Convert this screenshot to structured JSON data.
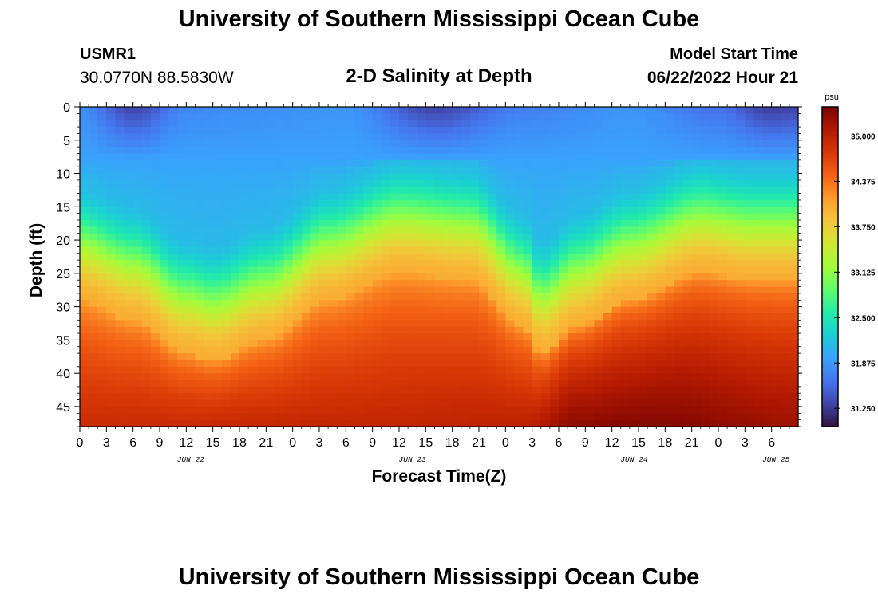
{
  "header": {
    "title": "University of Southern Mississippi Ocean Cube",
    "station_id": "USMR1",
    "coordinates": "30.0770N  88.5830W",
    "plot_title": "2-D Salinity at Depth",
    "model_start_label": "Model Start Time",
    "model_start_value": "06/22/2022 Hour 21"
  },
  "footer": {
    "title": "University of Southern Mississippi Ocean Cube"
  },
  "colors": {
    "colormap": [
      "#30123b",
      "#4145ab",
      "#4675ed",
      "#39a2fc",
      "#1bcfd4",
      "#24eca6",
      "#61fc6c",
      "#a4fc3b",
      "#d1e834",
      "#f3c63a",
      "#fe9b2d",
      "#f36315",
      "#d93806",
      "#b11901",
      "#7a0402"
    ]
  },
  "chart_data": {
    "type": "heatmap",
    "title": "2-D Salinity at Depth",
    "xlabel": "Forecast Time(Z)",
    "ylabel": "Depth (ft)",
    "x_hours_range": [
      0,
      81
    ],
    "x_tick_step_hours": 3,
    "x_tick_labels": [
      "0",
      "3",
      "6",
      "9",
      "12",
      "15",
      "18",
      "21",
      "0",
      "3",
      "6",
      "9",
      "12",
      "15",
      "18",
      "21",
      "0",
      "3",
      "6",
      "9",
      "12",
      "15",
      "18",
      "21",
      "0",
      "3",
      "6"
    ],
    "day_labels": [
      {
        "label": "JUN 22",
        "hour": 12.5
      },
      {
        "label": "JUN 23",
        "hour": 37.5
      },
      {
        "label": "JUN 24",
        "hour": 62.5
      },
      {
        "label": "JUN 25",
        "hour": 78.5
      }
    ],
    "y_range_ft": [
      0,
      48
    ],
    "y_ticks": [
      0,
      5,
      10,
      15,
      20,
      25,
      30,
      35,
      40,
      45
    ],
    "colorbar": {
      "unit": "psu",
      "range": [
        31.0,
        35.4
      ],
      "tick_values": [
        35.0,
        34.375,
        33.75,
        33.125,
        32.5,
        31.875,
        31.25
      ],
      "tick_labels": [
        "35.000",
        "34.375",
        "33.750",
        "33.125",
        "32.500",
        "31.875",
        "31.250"
      ]
    },
    "surface_salinity_psu": [
      {
        "hour": 0,
        "value": 31.8
      },
      {
        "hour": 6,
        "value": 31.3
      },
      {
        "hour": 12,
        "value": 31.75
      },
      {
        "hour": 18,
        "value": 31.8
      },
      {
        "hour": 30,
        "value": 31.85
      },
      {
        "hour": 40,
        "value": 31.3
      },
      {
        "hour": 50,
        "value": 31.7
      },
      {
        "hour": 62,
        "value": 31.85
      },
      {
        "hour": 72,
        "value": 31.6
      },
      {
        "hour": 78,
        "value": 31.25
      },
      {
        "hour": 81,
        "value": 31.3
      }
    ],
    "halocline_depth_ft": [
      {
        "hour": 0,
        "value": 20
      },
      {
        "hour": 6,
        "value": 23
      },
      {
        "hour": 12,
        "value": 28
      },
      {
        "hour": 15,
        "value": 29
      },
      {
        "hour": 21,
        "value": 26
      },
      {
        "hour": 28,
        "value": 20
      },
      {
        "hour": 36,
        "value": 16
      },
      {
        "hour": 44,
        "value": 17
      },
      {
        "hour": 50,
        "value": 24
      },
      {
        "hour": 52,
        "value": 28
      },
      {
        "hour": 56,
        "value": 24
      },
      {
        "hour": 62,
        "value": 20
      },
      {
        "hour": 70,
        "value": 16
      },
      {
        "hour": 76,
        "value": 17
      },
      {
        "hour": 81,
        "value": 17
      }
    ],
    "bottom_salinity_psu": [
      {
        "hour": 0,
        "value": 34.9
      },
      {
        "hour": 30,
        "value": 34.95
      },
      {
        "hour": 50,
        "value": 35.0
      },
      {
        "hour": 56,
        "value": 35.3
      },
      {
        "hour": 65,
        "value": 35.35
      },
      {
        "hour": 81,
        "value": 35.2
      }
    ]
  }
}
